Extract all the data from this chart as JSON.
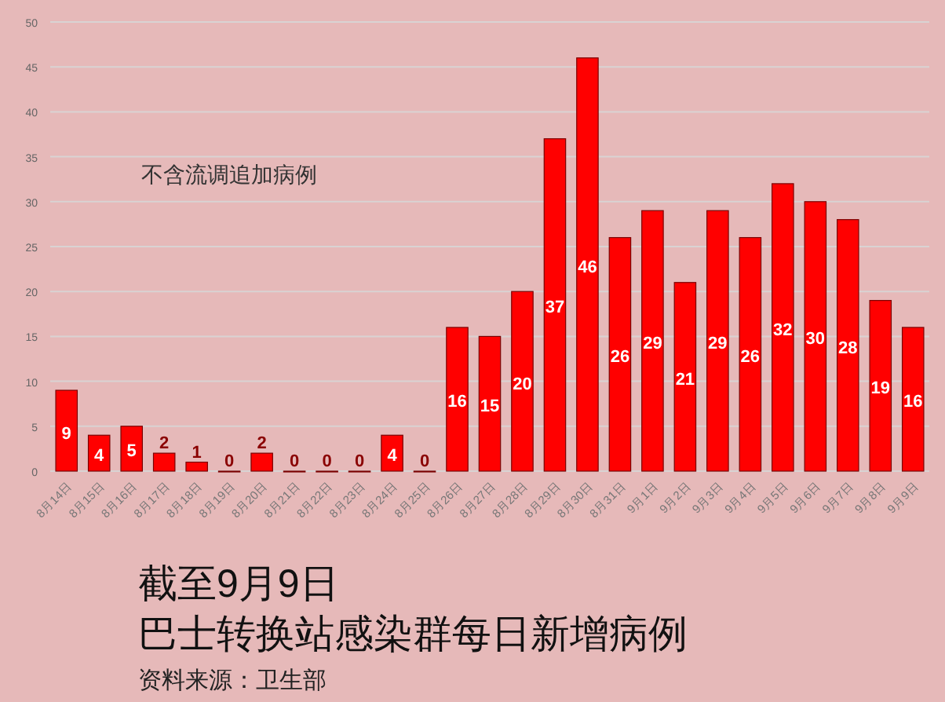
{
  "chart_data": {
    "type": "bar",
    "title": "截至9月9日",
    "subtitle": "巴士转换站感染群每日新增病例",
    "annotations": [
      "不含流调追加病例",
      "资料来源：卫生部"
    ],
    "categories": [
      "8月14日",
      "8月15日",
      "8月16日",
      "8月17日",
      "8月18日",
      "8月19日",
      "8月20日",
      "8月21日",
      "8月22日",
      "8月23日",
      "8月24日",
      "8月25日",
      "8月26日",
      "8月27日",
      "8月28日",
      "8月29日",
      "8月30日",
      "8月31日",
      "9月1日",
      "9月2日",
      "9月3日",
      "9月4日",
      "9月5日",
      "9月6日",
      "9月7日",
      "9月8日",
      "9月9日"
    ],
    "values": [
      9,
      4,
      5,
      2,
      1,
      0,
      2,
      0,
      0,
      0,
      4,
      0,
      16,
      15,
      20,
      37,
      46,
      26,
      29,
      21,
      29,
      26,
      32,
      30,
      28,
      19,
      16
    ],
    "color": "#ff0000",
    "ylim": [
      0,
      50
    ],
    "yticks": [
      0,
      5,
      10,
      15,
      20,
      25,
      30,
      35,
      40,
      45,
      50
    ],
    "grid": "y",
    "data_labels": true
  }
}
